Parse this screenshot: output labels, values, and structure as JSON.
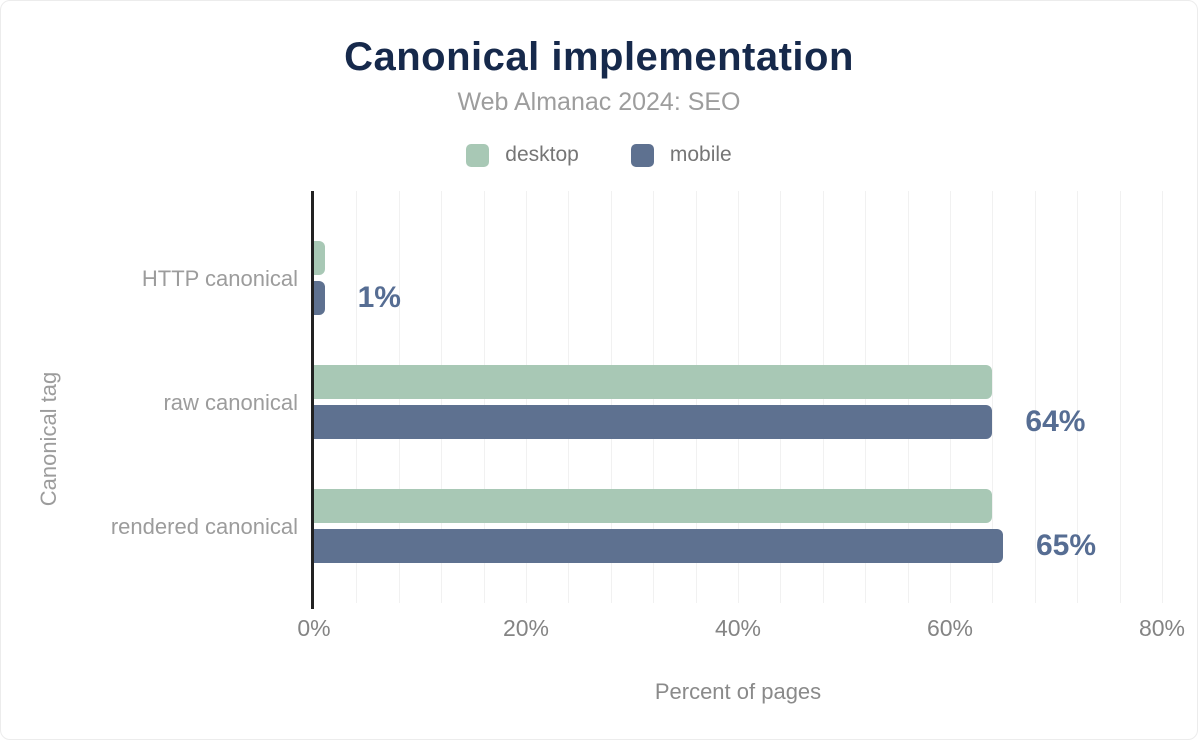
{
  "header": {
    "title": "Canonical implementation",
    "subtitle": "Web Almanac 2024: SEO"
  },
  "legend": {
    "items": [
      {
        "label": "desktop",
        "color": "#a8c8b5"
      },
      {
        "label": "mobile",
        "color": "#5e7190"
      }
    ]
  },
  "axes": {
    "x_title": "Percent of pages",
    "y_title": "Canonical tag",
    "x_ticks": [
      {
        "label": "0%",
        "value": 0
      },
      {
        "label": "20%",
        "value": 20
      },
      {
        "label": "40%",
        "value": 40
      },
      {
        "label": "60%",
        "value": 60
      },
      {
        "label": "80%",
        "value": 80
      }
    ]
  },
  "chart_data": {
    "type": "bar",
    "orientation": "horizontal",
    "title": "Canonical implementation",
    "subtitle": "Web Almanac 2024: SEO",
    "xlabel": "Percent of pages",
    "ylabel": "Canonical tag",
    "xlim": [
      0,
      80
    ],
    "grid": "vertical minor gridlines every 4%",
    "legend_position": "top-center",
    "categories": [
      "HTTP canonical",
      "raw canonical",
      "rendered canonical"
    ],
    "series": [
      {
        "name": "desktop",
        "color": "#a8c8b5",
        "values": [
          1,
          64,
          64
        ]
      },
      {
        "name": "mobile",
        "color": "#5e7190",
        "values": [
          1,
          64,
          65
        ]
      }
    ],
    "bar_labels": [
      {
        "category": "HTTP canonical",
        "text": "1%"
      },
      {
        "category": "raw canonical",
        "text": "64%"
      },
      {
        "category": "rendered canonical",
        "text": "65%"
      }
    ],
    "colors": {
      "title": "#16294b",
      "value_label": "#566d93",
      "axis_line": "#222222",
      "gridline": "#f1f1f1",
      "category_text": "#9c9c9c",
      "tick_text": "#848484",
      "subtitle_text": "#9d9d9d",
      "legend_text": "#767676"
    }
  }
}
